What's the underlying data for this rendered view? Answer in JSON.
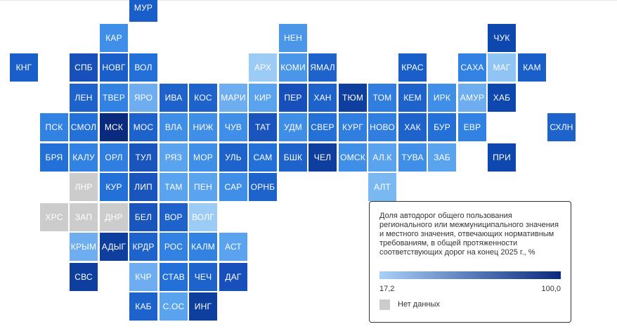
{
  "legend": {
    "title": "Доля автодорог общего пользования регионального или межмуниципального значения и местного значения, отвечающих нормативным требованиям, в общей протяженности соответствующих дорог на конец 2025 г., %",
    "min_label": "17,2",
    "max_label": "100,0",
    "no_data_label": "Нет данных",
    "gradient": [
      "#a8d0f8",
      "#0a2a7e"
    ],
    "no_data_color": "#cccccc"
  },
  "regions": [
    {
      "label": "МУР",
      "color": "#1a5fc9"
    },
    {
      "label": "КАР",
      "color": "#3f8fe8"
    },
    {
      "label": "НЕН",
      "color": "#4a97ea"
    },
    {
      "label": "ЧУК",
      "color": "#0e47ad"
    },
    {
      "label": "КНГ",
      "color": "#1a5fc9"
    },
    {
      "label": "СПБ",
      "color": "#1750bb"
    },
    {
      "label": "НОВГ",
      "color": "#1a5fc9"
    },
    {
      "label": "ВОЛ",
      "color": "#2370d8"
    },
    {
      "label": "АРХ",
      "color": "#9ccbf6"
    },
    {
      "label": "КОМИ",
      "color": "#4a97ea"
    },
    {
      "label": "ЯМАЛ",
      "color": "#1e63cc"
    },
    {
      "label": "КРАС",
      "color": "#1a5fc9"
    },
    {
      "label": "САХА",
      "color": "#3182e2"
    },
    {
      "label": "МАГ",
      "color": "#8fc4f5"
    },
    {
      "label": "КАМ",
      "color": "#1a5fc9"
    },
    {
      "label": "ЛЕН",
      "color": "#1e63cc"
    },
    {
      "label": "ТВЕР",
      "color": "#3182e2"
    },
    {
      "label": "ЯРО",
      "color": "#6eaef0"
    },
    {
      "label": "ИВА",
      "color": "#1e63cc"
    },
    {
      "label": "КОС",
      "color": "#1e63cc"
    },
    {
      "label": "МАРИ",
      "color": "#6eaef0"
    },
    {
      "label": "КИР",
      "color": "#5aa3ee"
    },
    {
      "label": "ПЕР",
      "color": "#1750bb"
    },
    {
      "label": "ХАН",
      "color": "#1e63cc"
    },
    {
      "label": "ТЮМ",
      "color": "#0f3f9e"
    },
    {
      "label": "ТОМ",
      "color": "#2f7ee0"
    },
    {
      "label": "КЕМ",
      "color": "#1e63cc"
    },
    {
      "label": "ИРК",
      "color": "#3f8fe8"
    },
    {
      "label": "АМУР",
      "color": "#6eaef0"
    },
    {
      "label": "ХАБ",
      "color": "#0e47ad"
    },
    {
      "label": "ПСК",
      "color": "#3182e2"
    },
    {
      "label": "СМОЛ",
      "color": "#2370d8"
    },
    {
      "label": "МСК",
      "color": "#0a2a7e"
    },
    {
      "label": "МОС",
      "color": "#1e63cc"
    },
    {
      "label": "ВЛА",
      "color": "#3f8fe8"
    },
    {
      "label": "НИЖ",
      "color": "#3f8fe8"
    },
    {
      "label": "ЧУВ",
      "color": "#3f8fe8"
    },
    {
      "label": "ТАТ",
      "color": "#1a54bd"
    },
    {
      "label": "УДМ",
      "color": "#3f8fe8"
    },
    {
      "label": "СВЕР",
      "color": "#2370d8"
    },
    {
      "label": "КУРГ",
      "color": "#2f7ee0"
    },
    {
      "label": "НОВО",
      "color": "#2f7ee0"
    },
    {
      "label": "ХАК",
      "color": "#1e63cc"
    },
    {
      "label": "БУР",
      "color": "#2370d8"
    },
    {
      "label": "ЕВР",
      "color": "#3182e2"
    },
    {
      "label": "СХЛН",
      "color": "#1e63cc"
    },
    {
      "label": "БРЯ",
      "color": "#2370d8"
    },
    {
      "label": "КАЛУ",
      "color": "#3182e2"
    },
    {
      "label": "ОРЛ",
      "color": "#2f7ee0"
    },
    {
      "label": "ТУЛ",
      "color": "#1a54bd"
    },
    {
      "label": "РЯЗ",
      "color": "#5aa3ee"
    },
    {
      "label": "МОР",
      "color": "#3f8fe8"
    },
    {
      "label": "УЛЬ",
      "color": "#1e63cc"
    },
    {
      "label": "САМ",
      "color": "#2370d8"
    },
    {
      "label": "БШК",
      "color": "#1e63cc"
    },
    {
      "label": "ЧЕЛ",
      "color": "#0f3f9e"
    },
    {
      "label": "ОМСК",
      "color": "#3f8fe8"
    },
    {
      "label": "АЛ.К",
      "color": "#5aa3ee"
    },
    {
      "label": "ТУВА",
      "color": "#3f8fe8"
    },
    {
      "label": "ЗАБ",
      "color": "#5aa3ee"
    },
    {
      "label": "ПРИ",
      "color": "#0e47ad"
    },
    {
      "label": "ЛНР",
      "color": "#cccccc"
    },
    {
      "label": "КУР",
      "color": "#2370d8"
    },
    {
      "label": "ЛИП",
      "color": "#1a54bd"
    },
    {
      "label": "ТАМ",
      "color": "#5aa3ee"
    },
    {
      "label": "ПЕН",
      "color": "#5aa3ee"
    },
    {
      "label": "САР",
      "color": "#3f8fe8"
    },
    {
      "label": "ОРНБ",
      "color": "#1e63cc"
    },
    {
      "label": "АЛТ",
      "color": "#7ab8f2"
    },
    {
      "label": "ХРС",
      "color": "#cccccc"
    },
    {
      "label": "ЗАП",
      "color": "#cccccc"
    },
    {
      "label": "ДНР",
      "color": "#cccccc"
    },
    {
      "label": "БЕЛ",
      "color": "#1a54bd"
    },
    {
      "label": "ВОР",
      "color": "#1e63cc"
    },
    {
      "label": "ВОЛГ",
      "color": "#9ccbf6"
    },
    {
      "label": "КРЫМ",
      "color": "#6eaef0"
    },
    {
      "label": "АДЫГ",
      "color": "#0f3f9e"
    },
    {
      "label": "КРДР",
      "color": "#1e63cc"
    },
    {
      "label": "РОС",
      "color": "#3182e2"
    },
    {
      "label": "КАЛМ",
      "color": "#3182e2"
    },
    {
      "label": "АСТ",
      "color": "#5aa3ee"
    },
    {
      "label": "СВС",
      "color": "#0f3f9e"
    },
    {
      "label": "КЧР",
      "color": "#6eaef0"
    },
    {
      "label": "СТАВ",
      "color": "#2370d8"
    },
    {
      "label": "ЧЕЧ",
      "color": "#1e63cc"
    },
    {
      "label": "ДАГ",
      "color": "#1750bb"
    },
    {
      "label": "КАБ",
      "color": "#1e63cc"
    },
    {
      "label": "С.ОС",
      "color": "#5aa3ee"
    },
    {
      "label": "ИНГ",
      "color": "#0f3f9e"
    }
  ]
}
